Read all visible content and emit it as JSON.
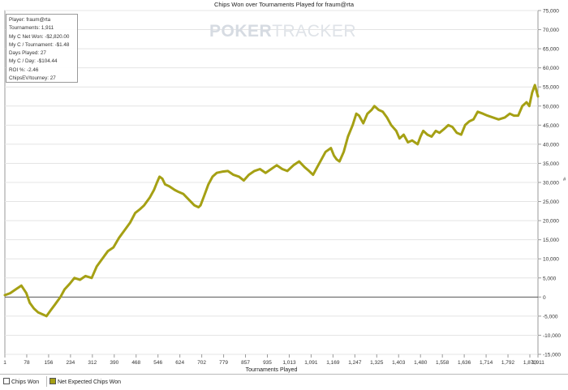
{
  "title": "Chips Won over Tournaments Played for fraum@rta",
  "watermark": {
    "brand_left": "POKER",
    "brand_right": "TRACKER"
  },
  "info": [
    "Player: fraum@rta",
    "Tournaments: 1,911",
    "My C Net Won: -$2,820.00",
    "My C / Tournament: -$1.48",
    "Days Played: 27",
    "My C / Day: -$104.44",
    "ROI %: -2.46",
    "ChipsEV/tourney: 27"
  ],
  "legend": [
    {
      "label": "Chips Won",
      "color": "#ffffff"
    },
    {
      "label": "Net Expected Chips Won",
      "color": "#a5a014"
    }
  ],
  "colors": {
    "series": "#a5a014",
    "zero_line": "#555555",
    "grid": "#e4e4e4",
    "axis": "#9a9a9a"
  },
  "chart_data": {
    "type": "line",
    "title": "Chips Won over Tournaments Played for fraum@rta",
    "xlabel": "Tournaments Played",
    "ylabel": "",
    "xlim": [
      1,
      1911
    ],
    "ylim": [
      -15000,
      75000
    ],
    "grid": true,
    "legend_position": "bottom-left",
    "x_ticks": [
      "1",
      "78",
      "156",
      "234",
      "312",
      "390",
      "468",
      "546",
      "624",
      "702",
      "779",
      "857",
      "935",
      "1,013",
      "1,091",
      "1,169",
      "1,247",
      "1,325",
      "1,403",
      "1,480",
      "1,558",
      "1,636",
      "1,714",
      "1,792",
      "1,870",
      "1,911"
    ],
    "y_ticks": [
      75000,
      70000,
      65000,
      60000,
      55000,
      50000,
      45000,
      40000,
      35000,
      30000,
      25000,
      20000,
      15000,
      10000,
      5000,
      0,
      -5000,
      -10000,
      -15000
    ],
    "y_tick_labels": [
      "75,000",
      "70,000",
      "65,000",
      "60,000",
      "55,000",
      "50,000",
      "45,000",
      "40,000",
      "35,000",
      "30,000",
      "25,000",
      "20,000",
      "15,000",
      "10,000",
      "5,000",
      "0",
      "-5,000",
      "-10,000",
      "-15,000"
    ],
    "series": [
      {
        "name": "Net Expected Chips Won",
        "color": "#a5a014",
        "x": [
          1,
          20,
          40,
          60,
          78,
          90,
          105,
          120,
          135,
          150,
          165,
          180,
          200,
          215,
          234,
          250,
          270,
          290,
          312,
          330,
          350,
          370,
          390,
          410,
          430,
          450,
          468,
          485,
          500,
          520,
          535,
          546,
          555,
          565,
          575,
          590,
          610,
          624,
          640,
          660,
          680,
          695,
          702,
          715,
          730,
          745,
          760,
          779,
          800,
          820,
          840,
          857,
          875,
          895,
          915,
          935,
          955,
          975,
          995,
          1013,
          1035,
          1055,
          1075,
          1091,
          1105,
          1120,
          1135,
          1150,
          1169,
          1180,
          1190,
          1200,
          1215,
          1230,
          1247,
          1260,
          1270,
          1285,
          1300,
          1315,
          1325,
          1340,
          1355,
          1370,
          1385,
          1403,
          1415,
          1430,
          1445,
          1460,
          1480,
          1490,
          1500,
          1515,
          1530,
          1545,
          1558,
          1575,
          1590,
          1605,
          1620,
          1636,
          1650,
          1665,
          1680,
          1695,
          1714,
          1730,
          1750,
          1770,
          1792,
          1810,
          1825,
          1840,
          1855,
          1870,
          1880,
          1890,
          1900,
          1911
        ],
        "y": [
          500,
          1000,
          2000,
          3000,
          1000,
          -1500,
          -3000,
          -4000,
          -4500,
          -5000,
          -3500,
          -2000,
          0,
          2000,
          3500,
          5000,
          4500,
          5500,
          5000,
          8000,
          10000,
          12000,
          13000,
          15500,
          17500,
          19500,
          22000,
          23000,
          24000,
          26000,
          28000,
          30000,
          31500,
          31000,
          29500,
          29000,
          28000,
          27500,
          27000,
          25500,
          24000,
          23500,
          24000,
          26500,
          29500,
          31500,
          32500,
          32800,
          33000,
          32000,
          31500,
          30500,
          32000,
          33000,
          33500,
          32500,
          33500,
          34500,
          33500,
          33000,
          34500,
          35500,
          34000,
          33000,
          32000,
          34000,
          36000,
          38000,
          39000,
          37000,
          36000,
          35500,
          38000,
          42000,
          45000,
          48000,
          47500,
          45500,
          48000,
          49000,
          50000,
          49000,
          48500,
          47000,
          45000,
          43500,
          41500,
          42500,
          40500,
          41000,
          40000,
          42000,
          43500,
          42500,
          42000,
          43500,
          43000,
          44000,
          45000,
          44500,
          43000,
          42500,
          45000,
          46000,
          46500,
          48500,
          48000,
          47500,
          47000,
          46500,
          47000,
          48000,
          47500,
          47500,
          50000,
          51000,
          50000,
          53500,
          55500,
          52500
        ]
      }
    ]
  }
}
